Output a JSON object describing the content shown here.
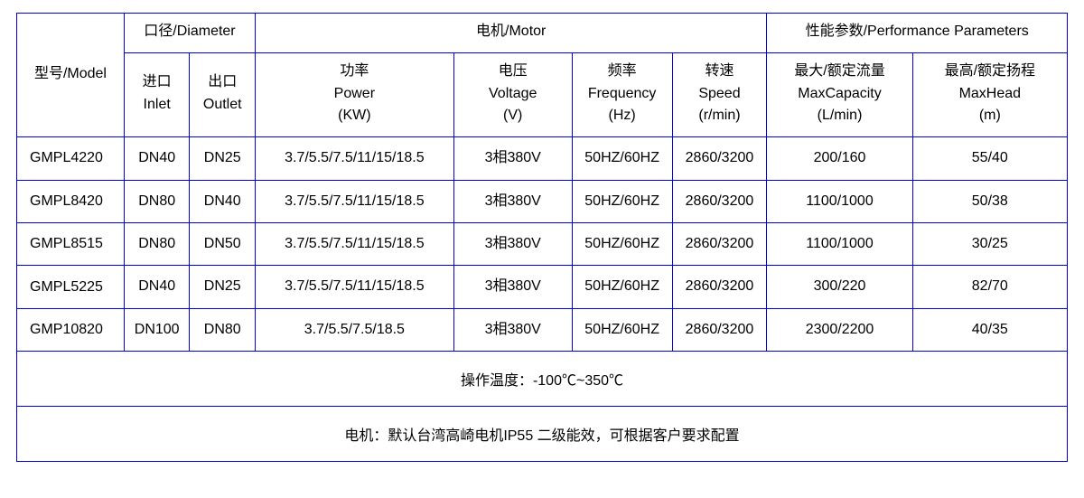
{
  "colors": {
    "border": "#0000d8",
    "text": "#000000",
    "background": "#ffffff"
  },
  "header": {
    "model": "型号/Model",
    "diameter": "口径/Diameter",
    "inlet": {
      "l1": "进口",
      "l2": "Inlet"
    },
    "outlet": {
      "l1": "出口",
      "l2": "Outlet"
    },
    "motor": "电机/Motor",
    "power": {
      "l1": "功率",
      "l2": "Power",
      "l3": "(KW)"
    },
    "voltage": {
      "l1": "电压",
      "l2": "Voltage",
      "l3": "(V)"
    },
    "freq": {
      "l1": "频率",
      "l2": "Frequency",
      "l3": "(Hz)"
    },
    "speed": {
      "l1": "转速",
      "l2": "Speed",
      "l3": "(r/min)"
    },
    "perf": "性能参数/Performance Parameters",
    "cap": {
      "l1": "最大/额定流量",
      "l2": "MaxCapacity",
      "l3": "(L/min)"
    },
    "head": {
      "l1": "最高/额定扬程",
      "l2": "MaxHead",
      "l3": "(m)"
    }
  },
  "rows": [
    {
      "model": "GMPL4220",
      "inlet": "DN40",
      "outlet": "DN25",
      "power": "3.7/5.5/7.5/11/15/18.5",
      "voltage": "3相380V",
      "freq": "50HZ/60HZ",
      "speed": "2860/3200",
      "cap": "200/160",
      "head": "55/40"
    },
    {
      "model": "GMPL8420",
      "inlet": "DN80",
      "outlet": "DN40",
      "power": "3.7/5.5/7.5/11/15/18.5",
      "voltage": "3相380V",
      "freq": "50HZ/60HZ",
      "speed": "2860/3200",
      "cap": "1100/1000",
      "head": "50/38"
    },
    {
      "model": "GMPL8515",
      "inlet": "DN80",
      "outlet": "DN50",
      "power": "3.7/5.5/7.5/11/15/18.5",
      "voltage": "3相380V",
      "freq": "50HZ/60HZ",
      "speed": "2860/3200",
      "cap": "1100/1000",
      "head": "30/25"
    },
    {
      "model": "GMPL5225",
      "inlet": "DN40",
      "outlet": "DN25",
      "power": "3.7/5.5/7.5/11/15/18.5",
      "voltage": "3相380V",
      "freq": "50HZ/60HZ",
      "speed": "2860/3200",
      "cap": "300/220",
      "head": "82/70"
    },
    {
      "model": "GMP10820",
      "inlet": "DN100",
      "outlet": "DN80",
      "power": "3.7/5.5/7.5/18.5",
      "voltage": "3相380V",
      "freq": "50HZ/60HZ",
      "speed": "2860/3200",
      "cap": "2300/2200",
      "head": "40/35"
    }
  ],
  "footer": {
    "temp": "操作温度：-100℃~350℃",
    "motor_note": "电机：默认台湾高崎电机IP55 二级能效，可根据客户要求配置"
  }
}
